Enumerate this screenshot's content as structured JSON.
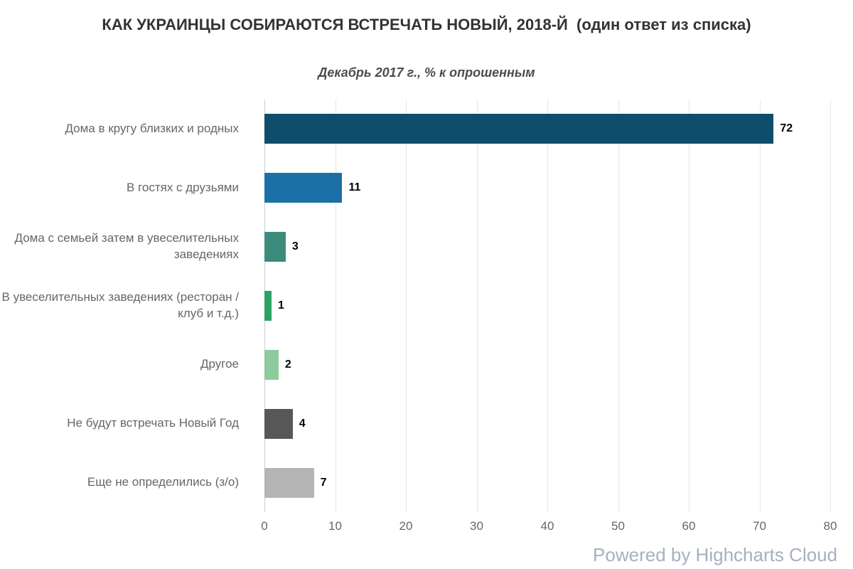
{
  "title": "КАК УКРАИНЦЫ СОБИРАЮТСЯ ВСТРЕЧАТЬ НОВЫЙ, 2018-Й  (один ответ из списка)",
  "subtitle": "Декабрь 2017 г., % к опрошенным",
  "credits": "Powered by Highcharts Cloud",
  "chart_data": {
    "type": "bar",
    "orientation": "horizontal",
    "title": "КАК УКРАИНЦЫ СОБИРАЮТСЯ ВСТРЕЧАТЬ НОВЫЙ, 2018-Й  (один ответ из списка)",
    "subtitle": "Декабрь 2017 г., % к опрошенным",
    "categories": [
      "Дома в кругу близких и родных",
      "В гостях с друзьями",
      "Дома с семьей затем в увеселительных заведениях",
      "В увеселительных заведениях (ресторан / клуб и т.д.)",
      "Другое",
      "Не будут встречать Новый Год",
      "Еще не определились (з/о)"
    ],
    "values": [
      72,
      11,
      3,
      1,
      2,
      4,
      7
    ],
    "bar_colors": [
      "#0e4d6c",
      "#1d70a7",
      "#3c8c7d",
      "#2ba261",
      "#8ecb9b",
      "#575757",
      "#b4b4b4"
    ],
    "xlim": [
      0,
      80
    ],
    "ticks": [
      0,
      10,
      20,
      30,
      40,
      50,
      60,
      70,
      80
    ],
    "grid": true,
    "value_labels": true,
    "legend": "none",
    "xlabel": "",
    "ylabel": ""
  }
}
